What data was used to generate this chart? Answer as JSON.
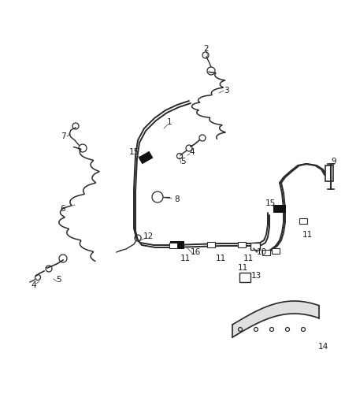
{
  "bg_color": "#ffffff",
  "line_color": "#2a2a2a",
  "label_color": "#1a1a1a",
  "clip_color": "#111111",
  "figsize": [
    4.38,
    5.33
  ],
  "dpi": 100,
  "lw_tube": 1.4,
  "lw_hose": 1.1,
  "label_fs": 7.5
}
